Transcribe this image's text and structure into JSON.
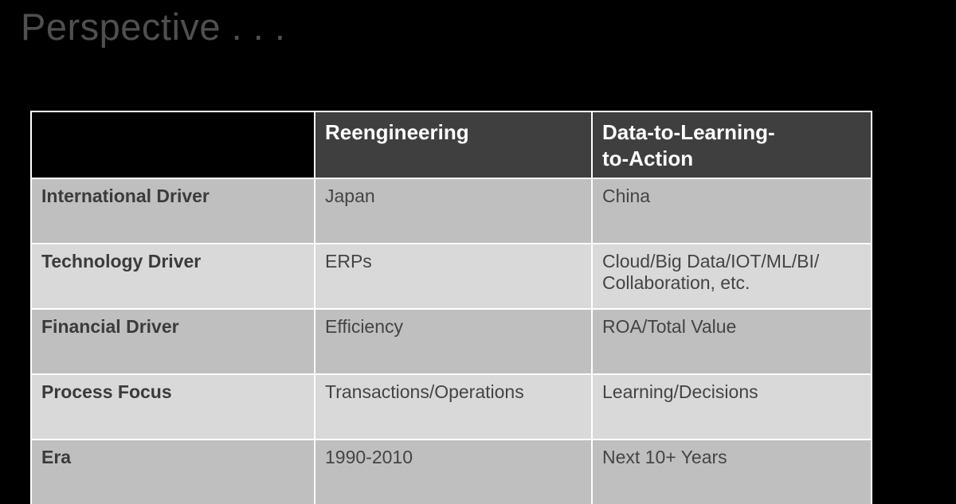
{
  "slide": {
    "title": "Perspective . . ."
  },
  "colors": {
    "background": "#000000",
    "title_text": "#4F4F4F",
    "header_bg": "#3F3F3F",
    "header_text": "#FFFFFF",
    "row_band_dark": "#BFBFBF",
    "row_band_light": "#D9D9D9",
    "border": "#FFFFFF",
    "body_text": "#444444",
    "label_text": "#3B3B3B"
  },
  "table": {
    "columns": [
      "",
      "Reengineering",
      "Data-to-Learning-\nto-Action"
    ],
    "rows": [
      {
        "label": "International Driver",
        "reengineering": "Japan",
        "data_to_learning_to_action": "China"
      },
      {
        "label": "Technology Driver",
        "reengineering": "ERPs",
        "data_to_learning_to_action": "Cloud/Big Data/IOT/ML/BI/\nCollaboration, etc."
      },
      {
        "label": "Financial Driver",
        "reengineering": "Efficiency",
        "data_to_learning_to_action": "ROA/Total Value"
      },
      {
        "label": "Process Focus",
        "reengineering": "Transactions/Operations",
        "data_to_learning_to_action": "Learning/Decisions"
      },
      {
        "label": "Era",
        "reengineering": "1990-2010",
        "data_to_learning_to_action": "Next 10+ Years"
      }
    ]
  }
}
